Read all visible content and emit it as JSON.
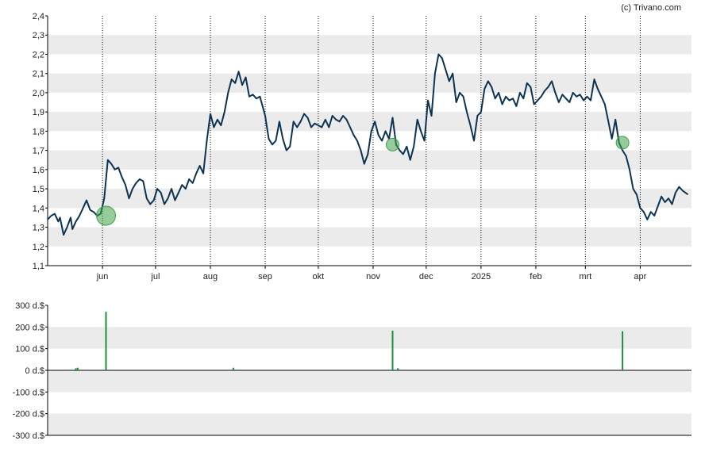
{
  "attribution": "(c) Trivano.com",
  "colors": {
    "price_line": "#0d3352",
    "marker_fill": "#3fa14a",
    "volume_bar": "#1f8f3a",
    "band": "#ebebeb",
    "axis": "#000000",
    "gridline": "#000000"
  },
  "chart_data": [
    {
      "type": "line",
      "title": "",
      "xlabel": "",
      "ylabel": "",
      "ylim": [
        1.1,
        2.4
      ],
      "y_ticks": [
        "1,1",
        "1,2",
        "1,3",
        "1,4",
        "1,5",
        "1,6",
        "1,7",
        "1,8",
        "1,9",
        "2,0",
        "2,1",
        "2,2",
        "2,3",
        "2,4"
      ],
      "x_ticks": [
        "jun",
        "jul",
        "aug",
        "sep",
        "okt",
        "nov",
        "dec",
        "2025",
        "feb",
        "mrt",
        "apr"
      ],
      "grid": "alternating horizontal bands, dotted vertical month lines",
      "x_range": [
        "2024-05-01",
        "2025-04-30"
      ],
      "series": [
        {
          "points": [
            [
              "2024-05-01",
              1.34
            ],
            [
              "2024-05-03",
              1.36
            ],
            [
              "2024-05-05",
              1.37
            ],
            [
              "2024-05-07",
              1.33
            ],
            [
              "2024-05-08",
              1.35
            ],
            [
              "2024-05-10",
              1.26
            ],
            [
              "2024-05-12",
              1.3
            ],
            [
              "2024-05-14",
              1.35
            ],
            [
              "2024-05-15",
              1.29
            ],
            [
              "2024-05-17",
              1.33
            ],
            [
              "2024-05-19",
              1.36
            ],
            [
              "2024-05-21",
              1.4
            ],
            [
              "2024-05-23",
              1.44
            ],
            [
              "2024-05-25",
              1.39
            ],
            [
              "2024-05-27",
              1.38
            ],
            [
              "2024-05-29",
              1.36
            ],
            [
              "2024-05-31",
              1.37
            ],
            [
              "2024-06-02",
              1.45
            ],
            [
              "2024-06-04",
              1.65
            ],
            [
              "2024-06-06",
              1.63
            ],
            [
              "2024-06-08",
              1.6
            ],
            [
              "2024-06-10",
              1.61
            ],
            [
              "2024-06-12",
              1.56
            ],
            [
              "2024-06-14",
              1.52
            ],
            [
              "2024-06-16",
              1.45
            ],
            [
              "2024-06-18",
              1.5
            ],
            [
              "2024-06-20",
              1.53
            ],
            [
              "2024-06-22",
              1.55
            ],
            [
              "2024-06-24",
              1.54
            ],
            [
              "2024-06-26",
              1.45
            ],
            [
              "2024-06-28",
              1.42
            ],
            [
              "2024-06-30",
              1.44
            ],
            [
              "2024-07-02",
              1.5
            ],
            [
              "2024-07-04",
              1.48
            ],
            [
              "2024-07-06",
              1.42
            ],
            [
              "2024-07-08",
              1.45
            ],
            [
              "2024-07-10",
              1.5
            ],
            [
              "2024-07-12",
              1.44
            ],
            [
              "2024-07-14",
              1.48
            ],
            [
              "2024-07-16",
              1.52
            ],
            [
              "2024-07-18",
              1.5
            ],
            [
              "2024-07-20",
              1.55
            ],
            [
              "2024-07-22",
              1.53
            ],
            [
              "2024-07-24",
              1.58
            ],
            [
              "2024-07-26",
              1.62
            ],
            [
              "2024-07-28",
              1.58
            ],
            [
              "2024-07-30",
              1.75
            ],
            [
              "2024-08-01",
              1.89
            ],
            [
              "2024-08-03",
              1.82
            ],
            [
              "2024-08-05",
              1.86
            ],
            [
              "2024-08-07",
              1.83
            ],
            [
              "2024-08-09",
              1.9
            ],
            [
              "2024-08-11",
              2.0
            ],
            [
              "2024-08-13",
              2.07
            ],
            [
              "2024-08-15",
              2.05
            ],
            [
              "2024-08-17",
              2.11
            ],
            [
              "2024-08-19",
              2.04
            ],
            [
              "2024-08-21",
              2.08
            ],
            [
              "2024-08-23",
              1.98
            ],
            [
              "2024-08-25",
              1.99
            ],
            [
              "2024-08-27",
              1.97
            ],
            [
              "2024-08-29",
              1.98
            ],
            [
              "2024-09-01",
              1.88
            ],
            [
              "2024-09-03",
              1.76
            ],
            [
              "2024-09-05",
              1.73
            ],
            [
              "2024-09-07",
              1.75
            ],
            [
              "2024-09-09",
              1.85
            ],
            [
              "2024-09-11",
              1.76
            ],
            [
              "2024-09-13",
              1.7
            ],
            [
              "2024-09-15",
              1.72
            ],
            [
              "2024-09-17",
              1.85
            ],
            [
              "2024-09-19",
              1.82
            ],
            [
              "2024-09-21",
              1.85
            ],
            [
              "2024-09-23",
              1.89
            ],
            [
              "2024-09-25",
              1.87
            ],
            [
              "2024-09-27",
              1.82
            ],
            [
              "2024-09-29",
              1.84
            ],
            [
              "2024-10-01",
              1.83
            ],
            [
              "2024-10-03",
              1.82
            ],
            [
              "2024-10-05",
              1.86
            ],
            [
              "2024-10-07",
              1.82
            ],
            [
              "2024-10-09",
              1.88
            ],
            [
              "2024-10-11",
              1.86
            ],
            [
              "2024-10-13",
              1.85
            ],
            [
              "2024-10-15",
              1.88
            ],
            [
              "2024-10-17",
              1.86
            ],
            [
              "2024-10-19",
              1.82
            ],
            [
              "2024-10-21",
              1.78
            ],
            [
              "2024-10-23",
              1.75
            ],
            [
              "2024-10-25",
              1.7
            ],
            [
              "2024-10-27",
              1.63
            ],
            [
              "2024-10-29",
              1.68
            ],
            [
              "2024-10-31",
              1.8
            ],
            [
              "2024-11-02",
              1.85
            ],
            [
              "2024-11-04",
              1.78
            ],
            [
              "2024-11-06",
              1.75
            ],
            [
              "2024-11-08",
              1.8
            ],
            [
              "2024-11-10",
              1.76
            ],
            [
              "2024-11-12",
              1.87
            ],
            [
              "2024-11-14",
              1.73
            ],
            [
              "2024-11-16",
              1.7
            ],
            [
              "2024-11-18",
              1.68
            ],
            [
              "2024-11-20",
              1.72
            ],
            [
              "2024-11-22",
              1.65
            ],
            [
              "2024-11-24",
              1.72
            ],
            [
              "2024-11-26",
              1.86
            ],
            [
              "2024-11-28",
              1.8
            ],
            [
              "2024-11-30",
              1.75
            ],
            [
              "2024-12-02",
              1.96
            ],
            [
              "2024-12-04",
              1.88
            ],
            [
              "2024-12-06",
              2.1
            ],
            [
              "2024-12-08",
              2.2
            ],
            [
              "2024-12-10",
              2.18
            ],
            [
              "2024-12-12",
              2.12
            ],
            [
              "2024-12-14",
              2.06
            ],
            [
              "2024-12-16",
              2.1
            ],
            [
              "2024-12-18",
              1.95
            ],
            [
              "2024-12-20",
              2.0
            ],
            [
              "2024-12-22",
              1.98
            ],
            [
              "2024-12-24",
              1.9
            ],
            [
              "2024-12-26",
              1.83
            ],
            [
              "2024-12-28",
              1.75
            ],
            [
              "2024-12-30",
              1.88
            ],
            [
              "2025-01-01",
              1.9
            ],
            [
              "2025-01-03",
              2.02
            ],
            [
              "2025-01-05",
              2.06
            ],
            [
              "2025-01-07",
              2.03
            ],
            [
              "2025-01-09",
              1.97
            ],
            [
              "2025-01-11",
              2.0
            ],
            [
              "2025-01-13",
              1.94
            ],
            [
              "2025-01-15",
              1.98
            ],
            [
              "2025-01-17",
              1.96
            ],
            [
              "2025-01-19",
              1.97
            ],
            [
              "2025-01-21",
              1.93
            ],
            [
              "2025-01-23",
              2.0
            ],
            [
              "2025-01-25",
              1.97
            ],
            [
              "2025-01-27",
              2.05
            ],
            [
              "2025-01-29",
              2.03
            ],
            [
              "2025-01-31",
              1.94
            ],
            [
              "2025-02-02",
              1.96
            ],
            [
              "2025-02-04",
              1.98
            ],
            [
              "2025-02-06",
              2.01
            ],
            [
              "2025-02-08",
              2.03
            ],
            [
              "2025-02-10",
              2.06
            ],
            [
              "2025-02-12",
              2.0
            ],
            [
              "2025-02-14",
              1.95
            ],
            [
              "2025-02-16",
              1.99
            ],
            [
              "2025-02-18",
              1.97
            ],
            [
              "2025-02-20",
              1.95
            ],
            [
              "2025-02-22",
              2.0
            ],
            [
              "2025-02-24",
              1.98
            ],
            [
              "2025-02-26",
              1.99
            ],
            [
              "2025-02-28",
              1.96
            ],
            [
              "2025-03-02",
              1.98
            ],
            [
              "2025-03-04",
              1.96
            ],
            [
              "2025-03-06",
              2.07
            ],
            [
              "2025-03-08",
              2.02
            ],
            [
              "2025-03-10",
              1.98
            ],
            [
              "2025-03-12",
              1.94
            ],
            [
              "2025-03-14",
              1.85
            ],
            [
              "2025-03-16",
              1.76
            ],
            [
              "2025-03-18",
              1.86
            ],
            [
              "2025-03-20",
              1.74
            ],
            [
              "2025-03-22",
              1.7
            ],
            [
              "2025-03-24",
              1.67
            ],
            [
              "2025-03-26",
              1.6
            ],
            [
              "2025-03-28",
              1.5
            ],
            [
              "2025-03-30",
              1.47
            ],
            [
              "2025-04-01",
              1.4
            ],
            [
              "2025-04-03",
              1.38
            ],
            [
              "2025-04-05",
              1.34
            ],
            [
              "2025-04-07",
              1.38
            ],
            [
              "2025-04-09",
              1.36
            ],
            [
              "2025-04-11",
              1.41
            ],
            [
              "2025-04-13",
              1.46
            ],
            [
              "2025-04-15",
              1.43
            ],
            [
              "2025-04-17",
              1.45
            ],
            [
              "2025-04-19",
              1.42
            ],
            [
              "2025-04-21",
              1.48
            ],
            [
              "2025-04-23",
              1.51
            ],
            [
              "2025-04-25",
              1.49
            ],
            [
              "2025-04-28",
              1.47
            ]
          ]
        }
      ],
      "markers": [
        {
          "x": "2024-06-03",
          "y": 1.36,
          "size": "large"
        },
        {
          "x": "2024-11-12",
          "y": 1.73,
          "size": "small"
        },
        {
          "x": "2025-03-22",
          "y": 1.74,
          "size": "small"
        }
      ]
    },
    {
      "type": "bar",
      "title": "",
      "xlabel": "",
      "ylabel": "",
      "ylim": [
        -300,
        300
      ],
      "y_ticks": [
        "300 d.$",
        "200 d.$",
        "100 d.$",
        "0 d.$",
        "-100 d.$",
        "-200 d.$",
        "-300 d.$"
      ],
      "grid": "alternating horizontal bands",
      "bars": [
        {
          "x": "2024-05-17",
          "value": 10
        },
        {
          "x": "2024-05-18",
          "value": 12
        },
        {
          "x": "2024-06-03",
          "value": 270
        },
        {
          "x": "2024-08-14",
          "value": 12
        },
        {
          "x": "2024-11-12",
          "value": 183
        },
        {
          "x": "2024-11-15",
          "value": 10
        },
        {
          "x": "2025-03-22",
          "value": 180
        }
      ]
    }
  ]
}
